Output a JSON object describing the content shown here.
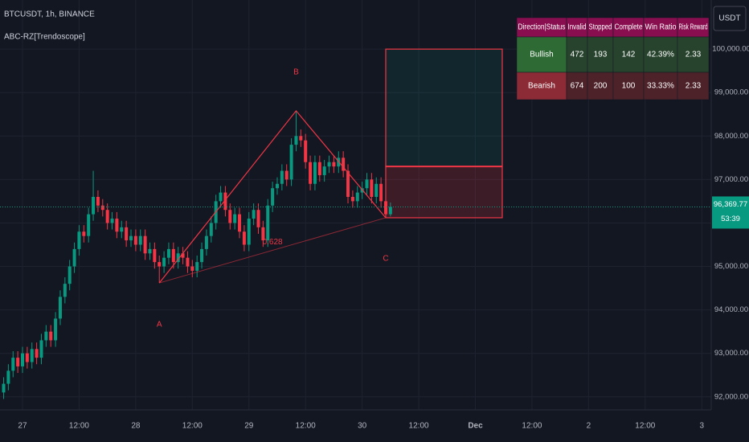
{
  "chart_data": {
    "type": "candlestick",
    "title": "BTCUSDT, 1h, BINANCE",
    "subtitle": "ABC-RZ[Trendoscope]",
    "currency": "USDT",
    "up_color": "#089981",
    "down_color": "#f23645",
    "grid": true,
    "xlim": [
      -4.77,
      146
    ],
    "ylim": [
      91700,
      101130
    ],
    "xticks": [
      {
        "value": 0,
        "label": "27"
      },
      {
        "value": 12,
        "label": "12:00"
      },
      {
        "value": 24,
        "label": "28"
      },
      {
        "value": 36,
        "label": "12:00"
      },
      {
        "value": 48,
        "label": "29"
      },
      {
        "value": 60,
        "label": "12:00"
      },
      {
        "value": 72,
        "label": "30"
      },
      {
        "value": 84,
        "label": "12:00"
      },
      {
        "value": 96,
        "label": "Dec"
      },
      {
        "value": 108,
        "label": "12:00"
      },
      {
        "value": 120,
        "label": "2"
      },
      {
        "value": 132,
        "label": "12:00"
      },
      {
        "value": 144,
        "label": "3"
      }
    ],
    "yticks": [
      {
        "value": 92000,
        "label": "92,000.00"
      },
      {
        "value": 93000,
        "label": "93,000.00"
      },
      {
        "value": 94000,
        "label": "94,000.00"
      },
      {
        "value": 95000,
        "label": "95,000.00"
      },
      {
        "value": 96000,
        "label": "96,000.00"
      },
      {
        "value": 97000,
        "label": "97,000.00"
      },
      {
        "value": 98000,
        "label": "98,000.00"
      },
      {
        "value": 99000,
        "label": "99,000.00"
      },
      {
        "value": 100000,
        "label": "100,000.00"
      }
    ],
    "x": [
      -4,
      -3,
      -2,
      -1,
      0,
      1,
      2,
      3,
      4,
      5,
      6,
      7,
      8,
      9,
      10,
      11,
      12,
      13,
      14,
      15,
      16,
      17,
      18,
      19,
      20,
      21,
      22,
      23,
      24,
      25,
      26,
      27,
      28,
      29,
      30,
      31,
      32,
      33,
      34,
      35,
      36,
      37,
      38,
      39,
      40,
      41,
      42,
      43,
      44,
      45,
      46,
      47,
      48,
      49,
      50,
      51,
      52,
      53,
      54,
      55,
      56,
      57,
      58,
      59,
      60,
      61,
      62,
      63,
      64,
      65,
      66,
      67,
      68,
      69,
      70,
      71,
      72,
      73,
      74,
      75,
      76,
      77,
      78
    ],
    "open": [
      92100,
      92300,
      92600,
      92900,
      92700,
      93000,
      92800,
      93100,
      92900,
      93300,
      93500,
      93300,
      93800,
      94300,
      94600,
      95000,
      95400,
      95800,
      95700,
      96200,
      96600,
      96400,
      96300,
      96000,
      96100,
      95800,
      95900,
      95600,
      95700,
      95500,
      95700,
      95300,
      95400,
      95100,
      95000,
      95200,
      95400,
      95100,
      95300,
      95200,
      95000,
      94900,
      95100,
      95400,
      95700,
      96000,
      96500,
      96700,
      96300,
      96000,
      96200,
      95800,
      95500,
      96100,
      96300,
      95900,
      95600,
      96400,
      96800,
      96900,
      97200,
      97000,
      97800,
      98000,
      97900,
      97400,
      96900,
      97400,
      97100,
      97300,
      97400,
      97300,
      97500,
      97200,
      96600,
      96500,
      96700,
      96800,
      97000,
      96600,
      96900,
      96500,
      96200
    ],
    "high": [
      92450,
      92750,
      93050,
      93050,
      93150,
      93150,
      93250,
      93250,
      93450,
      93650,
      93650,
      93950,
      94450,
      94750,
      95150,
      95550,
      95950,
      95950,
      96350,
      97200,
      96750,
      96550,
      96450,
      96250,
      96250,
      96050,
      96050,
      95850,
      95850,
      95850,
      95850,
      95550,
      95550,
      95250,
      95350,
      95550,
      95550,
      95450,
      95450,
      95350,
      95150,
      95250,
      95550,
      95850,
      96150,
      96650,
      96850,
      96850,
      96450,
      96350,
      96350,
      95950,
      96250,
      96450,
      96450,
      96050,
      96550,
      96950,
      97050,
      97350,
      97350,
      97950,
      98580,
      98150,
      98050,
      97550,
      97550,
      97550,
      97450,
      97550,
      97550,
      97650,
      97650,
      97350,
      96750,
      96850,
      96950,
      97150,
      97150,
      97050,
      97050,
      96650,
      96470
    ],
    "low": [
      91950,
      92150,
      92450,
      92550,
      92550,
      92650,
      92650,
      92750,
      92750,
      93150,
      93150,
      93150,
      93650,
      94150,
      94450,
      94850,
      95250,
      95550,
      95550,
      96050,
      96250,
      96150,
      95850,
      95850,
      95650,
      95650,
      95450,
      95450,
      95350,
      95350,
      95150,
      95150,
      94950,
      94620,
      94850,
      95050,
      94950,
      94950,
      95050,
      94850,
      94750,
      94750,
      94950,
      95250,
      95550,
      95850,
      96350,
      96150,
      95850,
      95850,
      95650,
      95350,
      95350,
      95950,
      95750,
      95450,
      95450,
      96250,
      96650,
      96750,
      96850,
      96850,
      97650,
      97750,
      97250,
      96750,
      96750,
      96950,
      96950,
      97150,
      97150,
      97150,
      97050,
      96450,
      96350,
      96350,
      96550,
      96650,
      96450,
      96450,
      96350,
      96120,
      96150
    ],
    "close": [
      92300,
      92600,
      92900,
      92700,
      93000,
      92800,
      93100,
      92900,
      93300,
      93500,
      93300,
      93800,
      94300,
      94600,
      95000,
      95400,
      95800,
      95700,
      96200,
      96600,
      96400,
      96300,
      96000,
      96100,
      95800,
      95900,
      95600,
      95700,
      95500,
      95700,
      95300,
      95400,
      95100,
      95000,
      95200,
      95400,
      95100,
      95300,
      95200,
      95000,
      94900,
      95100,
      95400,
      95700,
      96000,
      96500,
      96700,
      96300,
      96000,
      96200,
      95800,
      95500,
      96100,
      96300,
      95900,
      95600,
      96400,
      96800,
      96900,
      97200,
      97000,
      97800,
      98000,
      97900,
      97400,
      96900,
      97400,
      97100,
      97300,
      97400,
      97300,
      97500,
      97200,
      96600,
      96500,
      96700,
      96800,
      97000,
      96600,
      96900,
      96500,
      96200,
      96369.77
    ],
    "last_price": {
      "value": 96369.77,
      "label": "96,369.77"
    },
    "countdown": "53:39",
    "pattern_labels": [
      "A",
      "B",
      "C"
    ],
    "pattern_x": [
      29,
      58,
      77
    ],
    "pattern_y": [
      94620,
      98580,
      96120
    ],
    "ratio_label": "0.628",
    "zones": {
      "x": [
        77,
        101.7
      ],
      "target": 100000,
      "entry": 97300,
      "stop": 96120
    },
    "table": {
      "header": [
        "Direction|Status",
        "Invalid",
        "Stopped",
        "Complete",
        "Win Ratio",
        "Risk Reward"
      ],
      "rows": [
        [
          "Bullish",
          "472",
          "193",
          "142",
          "42.39%",
          "2.33"
        ],
        [
          "Bearish",
          "674",
          "200",
          "100",
          "33.33%",
          "2.33"
        ]
      ]
    }
  }
}
